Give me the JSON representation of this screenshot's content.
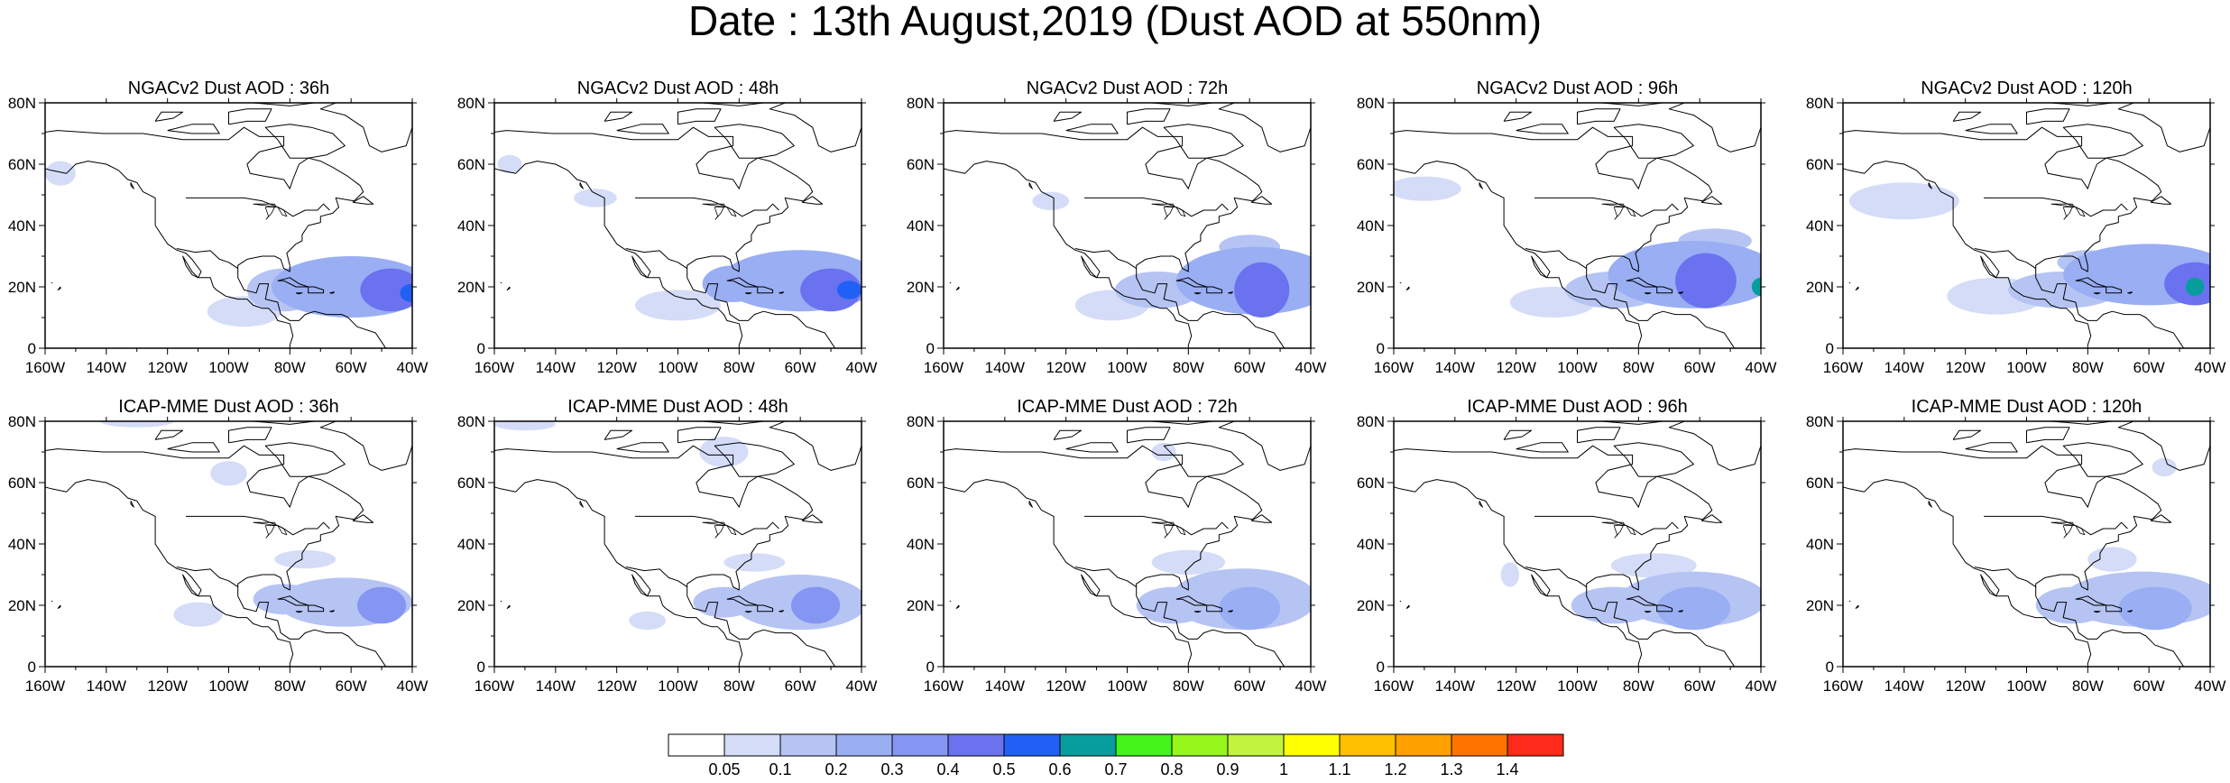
{
  "title": "Date : 13th August,2019 (Dust AOD at 550nm)",
  "map": {
    "lon_range": [
      -160,
      -40
    ],
    "lat_range": [
      0,
      80
    ],
    "lon_ticks": [
      "160W",
      "140W",
      "120W",
      "100W",
      "80W",
      "60W",
      "40W"
    ],
    "lat_ticks": [
      "0",
      "20N",
      "40N",
      "60N",
      "80N"
    ]
  },
  "panels": [
    {
      "title": "NGACv2 Dust AOD : 36h",
      "model": "NGACv2",
      "lead": "36h",
      "blobs": [
        [
          -60,
          20,
          26,
          10,
          0.22
        ],
        [
          -47,
          19,
          10,
          7,
          0.42
        ],
        [
          -82,
          19,
          12,
          7,
          0.18
        ],
        [
          -95,
          12,
          12,
          5,
          0.09
        ],
        [
          -155,
          57,
          5,
          4,
          0.08
        ],
        [
          -40,
          18,
          4,
          3,
          0.5
        ]
      ]
    },
    {
      "title": "NGACv2 Dust AOD : 48h",
      "model": "NGACv2",
      "lead": "48h",
      "blobs": [
        [
          -60,
          22,
          26,
          10,
          0.22
        ],
        [
          -50,
          19,
          10,
          7,
          0.45
        ],
        [
          -82,
          21,
          10,
          6,
          0.2
        ],
        [
          -100,
          14,
          14,
          5,
          0.09
        ],
        [
          -127,
          49,
          7,
          3,
          0.07
        ],
        [
          -155,
          60,
          4,
          3,
          0.08
        ],
        [
          -44,
          19,
          4,
          3,
          0.52
        ]
      ]
    },
    {
      "title": "NGACv2 Dust AOD : 72h",
      "model": "NGACv2",
      "lead": "72h",
      "blobs": [
        [
          -58,
          22,
          26,
          11,
          0.22
        ],
        [
          -56,
          19,
          9,
          9,
          0.45
        ],
        [
          -90,
          19,
          14,
          6,
          0.18
        ],
        [
          -105,
          14,
          12,
          5,
          0.09
        ],
        [
          -125,
          48,
          6,
          3,
          0.07
        ],
        [
          -60,
          33,
          10,
          4,
          0.15
        ]
      ]
    },
    {
      "title": "NGACv2 Dust AOD : 96h",
      "model": "NGACv2",
      "lead": "96h",
      "blobs": [
        [
          -62,
          24,
          28,
          11,
          0.22
        ],
        [
          -58,
          22,
          10,
          9,
          0.44
        ],
        [
          -88,
          19,
          16,
          6,
          0.18
        ],
        [
          -108,
          15,
          14,
          5,
          0.09
        ],
        [
          -150,
          52,
          12,
          4,
          0.07
        ],
        [
          -40,
          20,
          3,
          3,
          0.62
        ],
        [
          -55,
          35,
          12,
          4,
          0.12
        ]
      ]
    },
    {
      "title": "NGACv2 Dust AOD : 120h",
      "model": "NGACv2",
      "lead": "120h",
      "blobs": [
        [
          -60,
          24,
          28,
          10,
          0.22
        ],
        [
          -45,
          21,
          10,
          7,
          0.44
        ],
        [
          -88,
          19,
          18,
          6,
          0.16
        ],
        [
          -110,
          17,
          16,
          6,
          0.09
        ],
        [
          -140,
          48,
          18,
          6,
          0.08
        ],
        [
          -45,
          20,
          3,
          3,
          0.62
        ],
        [
          -80,
          28,
          10,
          4,
          0.12
        ]
      ]
    },
    {
      "title": "ICAP-MME Dust AOD : 36h",
      "model": "ICAP-MME",
      "lead": "36h",
      "blobs": [
        [
          -62,
          21,
          22,
          8,
          0.15
        ],
        [
          -50,
          20,
          8,
          6,
          0.32
        ],
        [
          -82,
          22,
          10,
          5,
          0.1
        ],
        [
          -75,
          35,
          10,
          3,
          0.07
        ],
        [
          -110,
          17,
          8,
          4,
          0.07
        ],
        [
          -130,
          80,
          12,
          2,
          0.06
        ],
        [
          -100,
          63,
          6,
          4,
          0.06
        ]
      ]
    },
    {
      "title": "ICAP-MME Dust AOD : 48h",
      "model": "ICAP-MME",
      "lead": "48h",
      "blobs": [
        [
          -60,
          21,
          22,
          9,
          0.15
        ],
        [
          -55,
          20,
          8,
          6,
          0.3
        ],
        [
          -85,
          21,
          10,
          5,
          0.1
        ],
        [
          -75,
          34,
          10,
          3,
          0.07
        ],
        [
          -110,
          15,
          6,
          3,
          0.07
        ],
        [
          -150,
          79,
          10,
          2,
          0.06
        ],
        [
          -85,
          70,
          8,
          5,
          0.06
        ]
      ]
    },
    {
      "title": "ICAP-MME Dust AOD : 72h",
      "model": "ICAP-MME",
      "lead": "72h",
      "blobs": [
        [
          -62,
          22,
          24,
          10,
          0.15
        ],
        [
          -60,
          19,
          10,
          7,
          0.22
        ],
        [
          -85,
          20,
          12,
          6,
          0.12
        ],
        [
          -80,
          34,
          12,
          4,
          0.08
        ],
        [
          -88,
          70,
          4,
          3,
          0.06
        ]
      ]
    },
    {
      "title": "ICAP-MME Dust AOD : 96h",
      "model": "ICAP-MME",
      "lead": "96h",
      "blobs": [
        [
          -62,
          22,
          24,
          9,
          0.16
        ],
        [
          -62,
          19,
          12,
          7,
          0.22
        ],
        [
          -88,
          20,
          14,
          6,
          0.12
        ],
        [
          -75,
          33,
          14,
          4,
          0.08
        ],
        [
          -122,
          30,
          3,
          4,
          0.08
        ]
      ]
    },
    {
      "title": "ICAP-MME Dust AOD : 120h",
      "model": "ICAP-MME",
      "lead": "120h",
      "blobs": [
        [
          -62,
          22,
          26,
          9,
          0.16
        ],
        [
          -58,
          19,
          12,
          7,
          0.22
        ],
        [
          -85,
          20,
          12,
          6,
          0.12
        ],
        [
          -72,
          35,
          8,
          4,
          0.08
        ],
        [
          -55,
          65,
          4,
          3,
          0.06
        ]
      ]
    }
  ],
  "colorbar": {
    "colors": [
      "#ffffff",
      "#d4dcf8",
      "#b6c4f4",
      "#99aef3",
      "#8496f2",
      "#6a72ef",
      "#2060f5",
      "#079d9d",
      "#42f41a",
      "#96f51a",
      "#c2f43f",
      "#ffff00",
      "#ffc000",
      "#ff9f00",
      "#ff7300",
      "#ff2a1a"
    ],
    "labels": [
      "0.05",
      "0.1",
      "0.2",
      "0.3",
      "0.4",
      "0.5",
      "0.6",
      "0.7",
      "0.8",
      "0.9",
      "1",
      "1.1",
      "1.2",
      "1.3",
      "1.4"
    ],
    "thresholds": [
      0.05,
      0.1,
      0.2,
      0.3,
      0.4,
      0.5,
      0.6,
      0.7,
      0.8,
      0.9,
      1.0,
      1.1,
      1.2,
      1.3,
      1.4
    ]
  }
}
